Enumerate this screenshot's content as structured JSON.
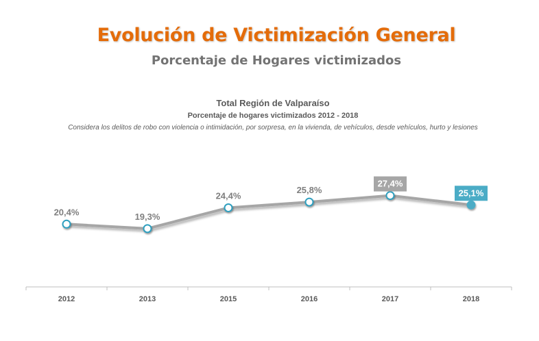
{
  "header": {
    "title": "Evolución de Victimización General",
    "subtitle": "Porcentaje de Hogares victimizados"
  },
  "colors": {
    "title": "#e46c0a",
    "subtitle": "#737373",
    "line": "#a6a6a6",
    "axis_text": "#595959",
    "label_text": "#7f7f7f",
    "highlight_2017": "#a6a6a6",
    "highlight_2018": "#4bacc6"
  },
  "chart_data": {
    "type": "line",
    "title": "Total Región de Valparaíso",
    "subtitle": "Porcentaje de hogares victimizados 2012 - 2018",
    "note": "Considera los delitos de robo con violencia o intimidación, por sorpresa, en la vivienda, de vehículos, desde vehículos, hurto y lesiones",
    "categories": [
      "2012",
      "2013",
      "2015",
      "2016",
      "2017",
      "2018"
    ],
    "values": [
      20.4,
      19.3,
      24.4,
      25.8,
      27.4,
      25.1
    ],
    "labels": [
      "20,4%",
      "19,3%",
      "24,4%",
      "25,8%",
      "27,4%",
      "25,1%"
    ],
    "highlighted": {
      "2017": "gray-box",
      "2018": "blue-box"
    },
    "xlabel": "",
    "ylabel": "",
    "y_axis_visible": false,
    "grid": false,
    "legend": "none"
  }
}
